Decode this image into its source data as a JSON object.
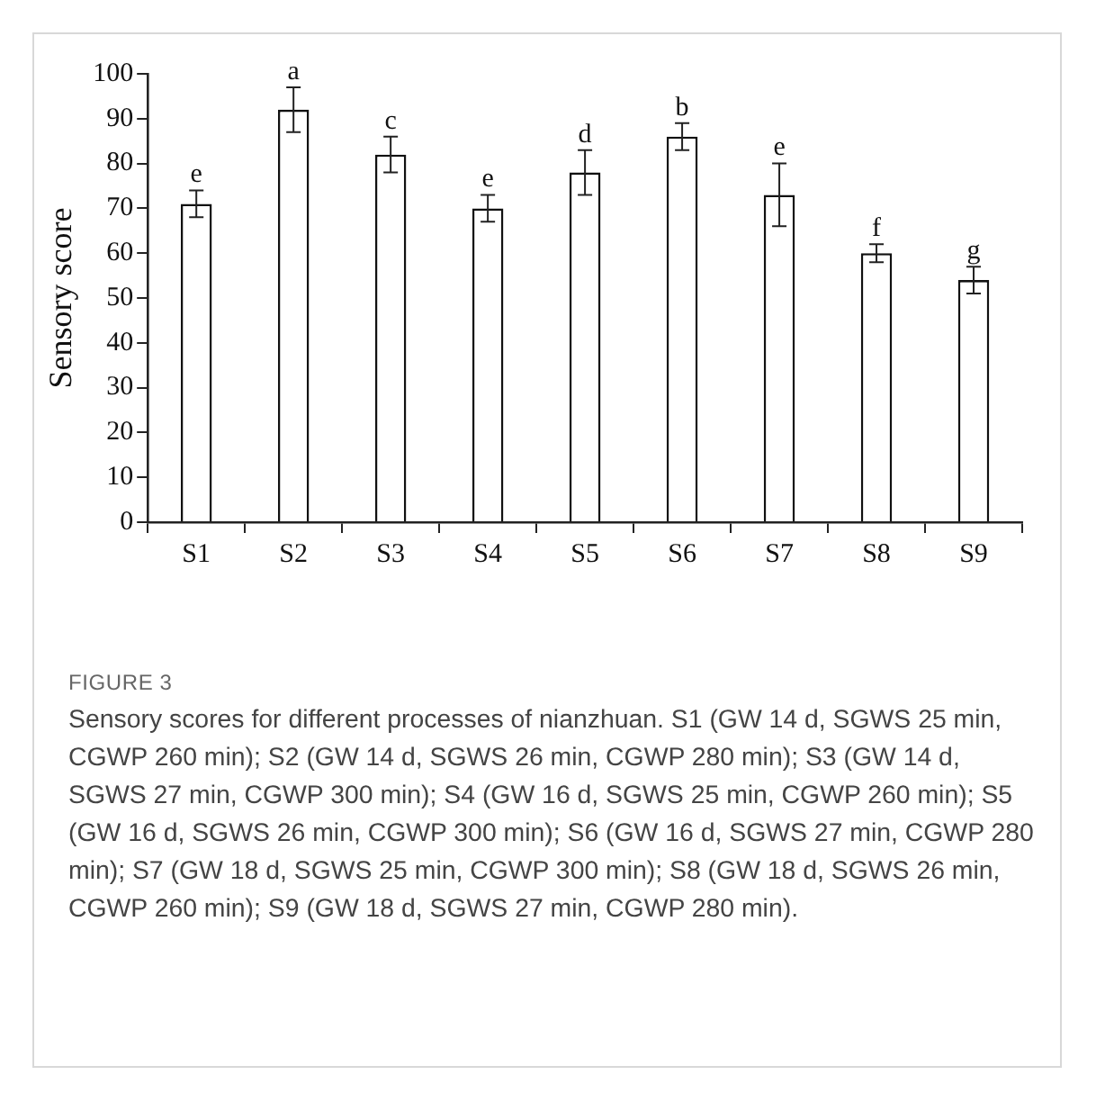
{
  "chart_data": {
    "type": "bar",
    "ylabel": "Sensory score",
    "categories": [
      "S1",
      "S2",
      "S3",
      "S4",
      "S5",
      "S6",
      "S7",
      "S8",
      "S9"
    ],
    "values": [
      71,
      92,
      82,
      70,
      78,
      86,
      73,
      60,
      54
    ],
    "errors": [
      3,
      5,
      4,
      3,
      5,
      3,
      7,
      2,
      3
    ],
    "color": "#ffffff",
    "ylim": [
      0,
      100
    ],
    "yticks": [
      0,
      10,
      20,
      30,
      40,
      50,
      60,
      70,
      80,
      90,
      100
    ],
    "annotations": [
      {
        "text": "e",
        "x": "S1",
        "y": 74
      },
      {
        "text": "a",
        "x": "S2",
        "y": 97
      },
      {
        "text": "c",
        "x": "S3",
        "y": 86
      },
      {
        "text": "e",
        "x": "S4",
        "y": 73
      },
      {
        "text": "d",
        "x": "S5",
        "y": 83
      },
      {
        "text": "b",
        "x": "S6",
        "y": 89
      },
      {
        "text": "e",
        "x": "S7",
        "y": 80
      },
      {
        "text": "f",
        "x": "S8",
        "y": 62
      },
      {
        "text": "g",
        "x": "S9",
        "y": 57
      },
      "FIGURE 3",
      "Sensory scores for different processes of nianzhuan. S1 (GW 14 d, SGWS 25 min, CGWP 260 min); S2 (GW 14 d, SGWS 26 min, CGWP 280 min); S3 (GW 14 d, SGWS 27 min, CGWP 300 min); S4 (GW 16 d, SGWS 25 min, CGWP 260 min); S5 (GW 16 d, SGWS 26 min, CGWP 300 min); S6 (GW 16 d, SGWS 27 min, CGWP 280 min); S7 (GW 18 d, SGWS 25 min, CGWP 300 min); S8 (GW 18 d, SGWS 26 min, CGWP 260 min); S9 (GW 18 d, SGWS 27 min, CGWP 280 min)."
    ]
  }
}
